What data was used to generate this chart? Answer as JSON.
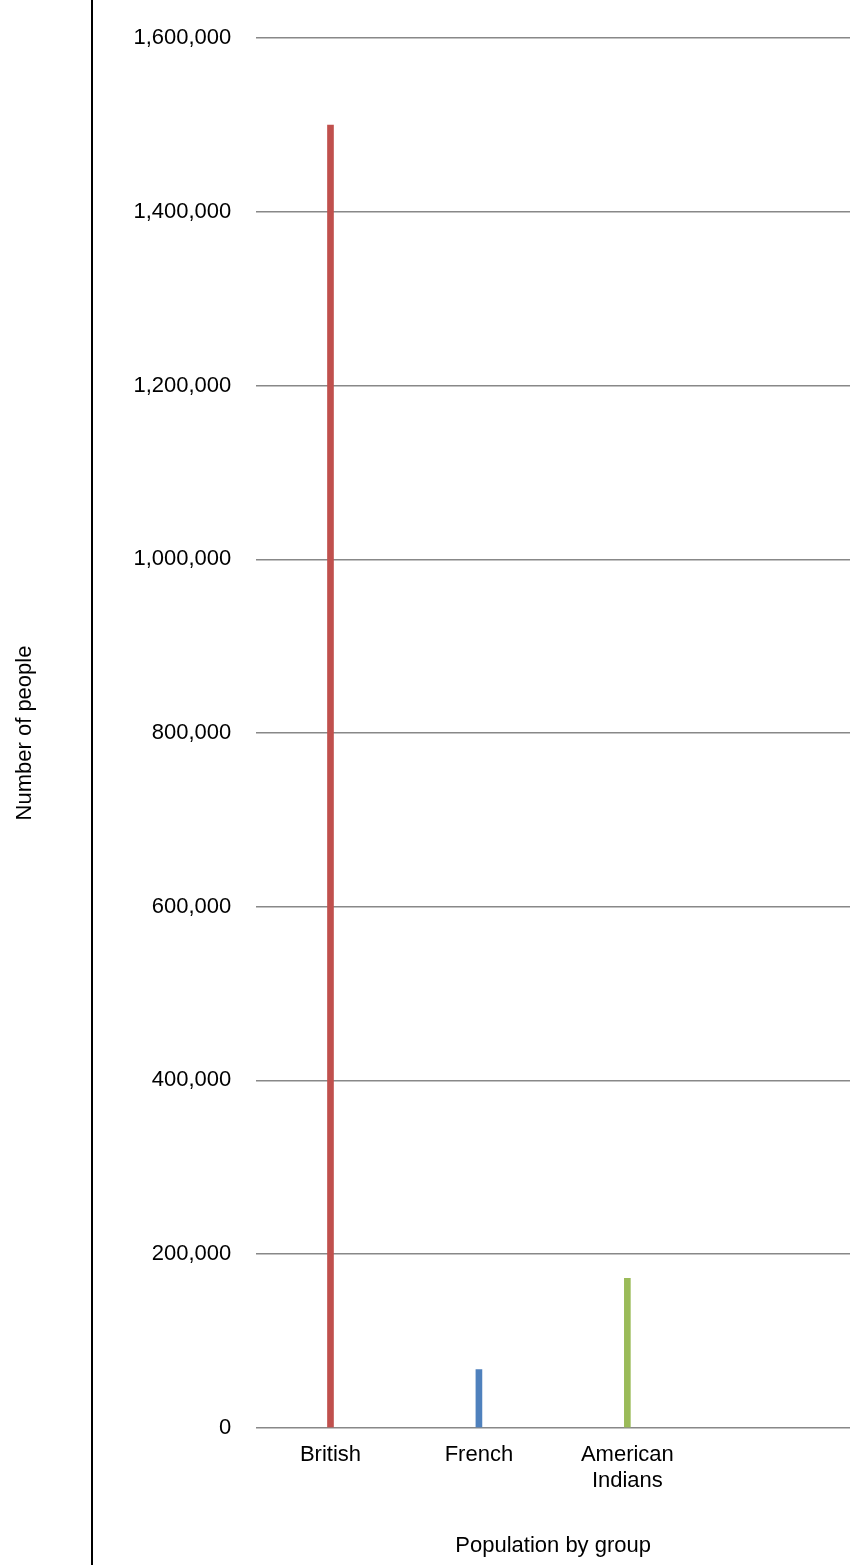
{
  "chart_data": {
    "type": "bar",
    "xlabel": "Population by group",
    "ylabel": "Number of people",
    "categories": [
      "British",
      "French",
      "American Indians",
      null
    ],
    "values": [
      1500000,
      67000,
      172000,
      null
    ],
    "colors": [
      "#c0504d",
      "#4f81bd",
      "#9bbb59",
      "#9bbb59"
    ],
    "ylim": [
      0,
      1600000
    ],
    "yticks": [
      0,
      {
        "value": 200000,
        "label": "200,000"
      },
      {
        "value": 400000,
        "label": "400,000"
      },
      {
        "value": 600000,
        "label": "600,000"
      },
      {
        "value": 800000,
        "label": "800,000"
      },
      {
        "value": 1000000,
        "label": "1,000,000"
      },
      {
        "value": 1200000,
        "label": "1,200,000"
      },
      {
        "value": 1400000,
        "label": "1,400,000"
      },
      {
        "value": 1600000,
        "label": "1,600,000"
      }
    ],
    "grid": "y",
    "legend": false
  }
}
